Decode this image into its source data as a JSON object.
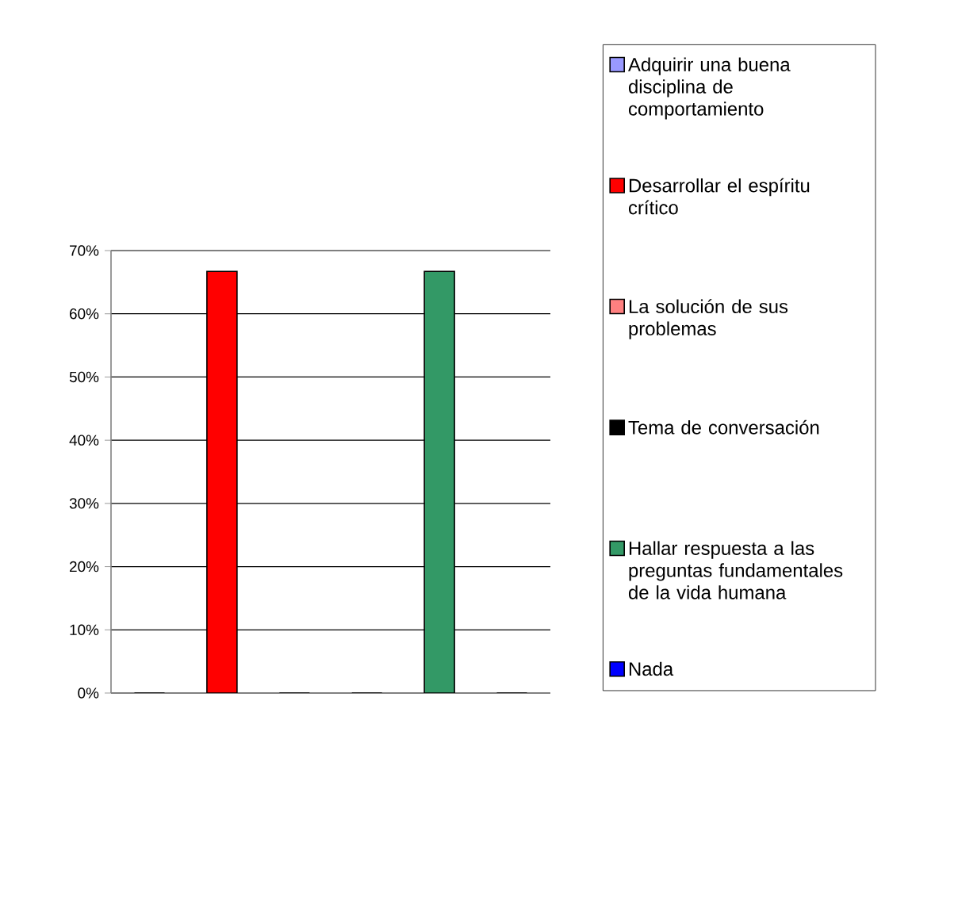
{
  "chart_data": {
    "type": "bar",
    "categories": [
      null
    ],
    "series": [
      {
        "name": "Adquirir una buena disciplina de comportamiento",
        "color": "#9999ff",
        "values": [
          0
        ]
      },
      {
        "name": "Desarrollar el espíritu crítico",
        "color": "#ff0000",
        "values": [
          66.7
        ]
      },
      {
        "name": "La solución de sus problemas",
        "color": "#ff8080",
        "values": [
          0
        ]
      },
      {
        "name": "Tema de conversación",
        "color": "#000000",
        "values": [
          0
        ]
      },
      {
        "name": "Hallar respuesta a las preguntas fundamentales de la vida humana",
        "color": "#339966",
        "values": [
          66.7
        ]
      },
      {
        "name": "Nada",
        "color": "#0000ff",
        "values": [
          0
        ]
      }
    ],
    "ylim": [
      0,
      70
    ],
    "yticks": [
      {
        "value": 0,
        "label": "0%"
      },
      {
        "value": 10,
        "label": "10%"
      },
      {
        "value": 20,
        "label": "20%"
      },
      {
        "value": 30,
        "label": "30%"
      },
      {
        "value": 40,
        "label": "40%"
      },
      {
        "value": 50,
        "label": "50%"
      },
      {
        "value": 60,
        "label": "60%"
      },
      {
        "value": 70,
        "label": "70%"
      }
    ],
    "grid": "y",
    "legend": "right",
    "tick_labels": "y"
  }
}
